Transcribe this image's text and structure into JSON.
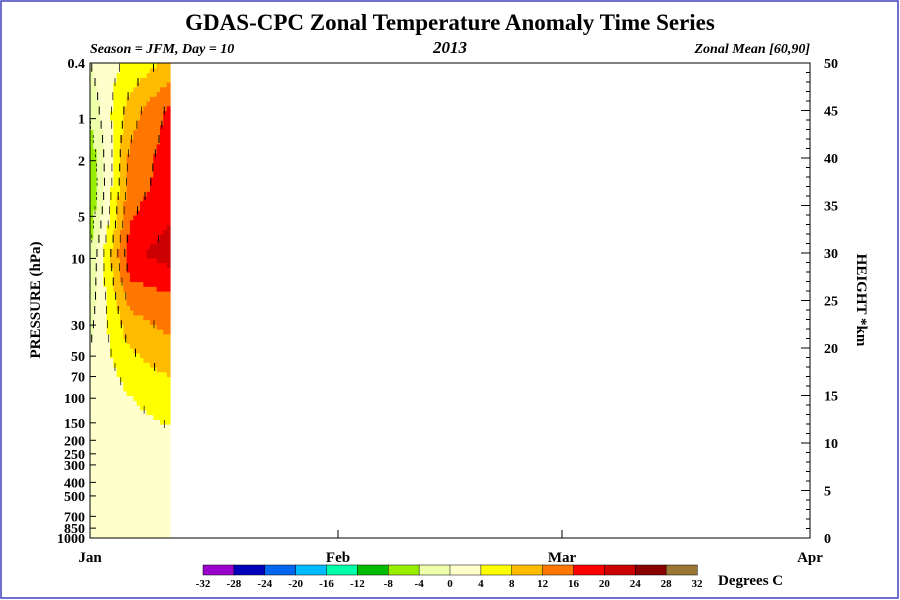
{
  "chart_data": {
    "type": "heatmap",
    "title": "GDAS-CPC Zonal Temperature Anomaly Time Series",
    "subtitle_left": "Season = JFM, Day =  10",
    "subtitle_center": "2013",
    "subtitle_right": "Zonal Mean [60,90]",
    "ylabel_left": "PRESSURE (hPa)",
    "ylabel_right": "HEIGHT *km",
    "y_left_ticks": [
      "0.4",
      "1",
      "2",
      "5",
      "10",
      "30",
      "50",
      "70",
      "100",
      "150",
      "200",
      "250",
      "300",
      "400",
      "500",
      "700",
      "850",
      "1000"
    ],
    "y_left_values": [
      0.4,
      1,
      2,
      5,
      10,
      30,
      50,
      70,
      100,
      150,
      200,
      250,
      300,
      400,
      500,
      700,
      850,
      1000
    ],
    "y_right_ticks": [
      "0",
      "5",
      "10",
      "15",
      "20",
      "25",
      "30",
      "35",
      "40",
      "45",
      "50"
    ],
    "x_ticks": [
      "Jan",
      "Feb",
      "Mar",
      "Apr"
    ],
    "x_tick_days": [
      0,
      31,
      59,
      90
    ],
    "xlim_days": [
      0,
      90
    ],
    "ylim_km": [
      0,
      50
    ],
    "data_days_shown": 10,
    "colorbar_label": "Degrees C",
    "colorbar_ticks": [
      "-32",
      "-28",
      "-24",
      "-20",
      "-16",
      "-12",
      "-8",
      "-4",
      "0",
      "4",
      "8",
      "12",
      "16",
      "20",
      "24",
      "28",
      "32"
    ],
    "colorbar_colors": [
      "#9900cc",
      "#0000bb",
      "#0066ee",
      "#00bbff",
      "#00ffaa",
      "#00bb00",
      "#99ee00",
      "#eeffaa",
      "#ffffcc",
      "#ffff00",
      "#ffbb00",
      "#ff7700",
      "#ff0000",
      "#cc0000",
      "#880000",
      "#997733"
    ],
    "anomaly_profiles": [
      {
        "day": 0,
        "levels_km": [
          0,
          5,
          10,
          15,
          20,
          25,
          28,
          30,
          33,
          37,
          40,
          45,
          48,
          50
        ],
        "anomaly_c": [
          1,
          1,
          1,
          0,
          0,
          -2,
          -3,
          -4,
          -6,
          -8,
          -7,
          -3,
          -1,
          0
        ]
      },
      {
        "day": 5,
        "levels_km": [
          0,
          5,
          10,
          15,
          20,
          25,
          28,
          30,
          33,
          37,
          40,
          45,
          48,
          50
        ],
        "anomaly_c": [
          1,
          1,
          2,
          4,
          8,
          13,
          17,
          19,
          16,
          14,
          13,
          10,
          7,
          5
        ]
      },
      {
        "day": 10,
        "levels_km": [
          0,
          5,
          10,
          15,
          20,
          25,
          28,
          30,
          33,
          37,
          40,
          45,
          48,
          50
        ],
        "anomaly_c": [
          1,
          1,
          3,
          6,
          11,
          15,
          19,
          22,
          20,
          18,
          18,
          17,
          12,
          9
        ]
      }
    ]
  }
}
